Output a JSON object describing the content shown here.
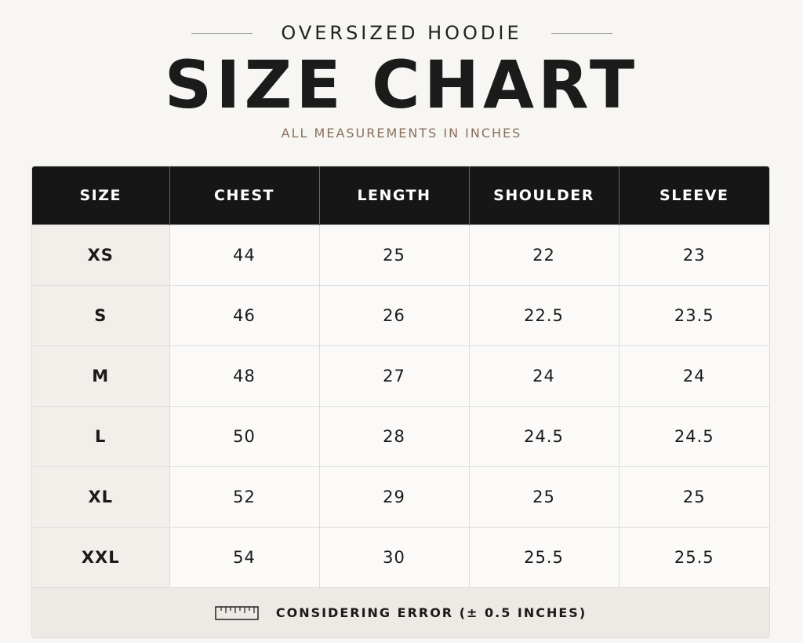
{
  "header": {
    "kicker": "OVERSIZED HOODIE",
    "title": "SIZE CHART",
    "subtitle": "ALL MEASUREMENTS IN INCHES"
  },
  "table": {
    "columns": [
      "SIZE",
      "CHEST",
      "LENGTH",
      "SHOULDER",
      "SLEEVE"
    ],
    "rows": [
      [
        "XS",
        "44",
        "25",
        "22",
        "23"
      ],
      [
        "S",
        "46",
        "26",
        "22.5",
        "23.5"
      ],
      [
        "M",
        "48",
        "27",
        "24",
        "24"
      ],
      [
        "L",
        "50",
        "28",
        "24.5",
        "24.5"
      ],
      [
        "XL",
        "52",
        "29",
        "25",
        "25"
      ],
      [
        "XXL",
        "54",
        "30",
        "25.5",
        "25.5"
      ]
    ],
    "footnote": "CONSIDERING ERROR (± 0.5 INCHES)"
  }
}
